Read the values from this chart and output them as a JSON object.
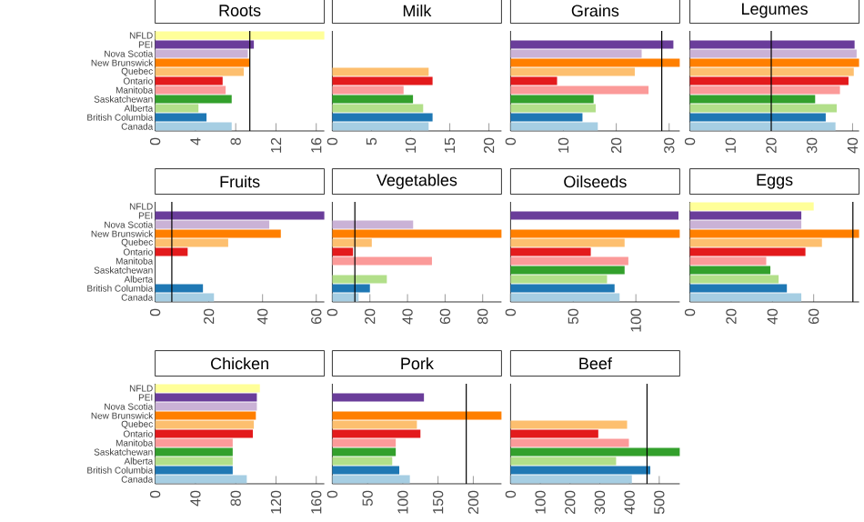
{
  "chart_data": [
    {
      "type": "bar",
      "orientation": "horizontal",
      "title": "Roots",
      "categories": [
        "NFLD",
        "PEI",
        "Nova Scotia",
        "New Brunswick",
        "Quebec",
        "Ontario",
        "Manitoba",
        "Saskatchewan",
        "Alberta",
        "British Columbia",
        "Canada"
      ],
      "values": [
        16.8,
        9.8,
        9.2,
        9.4,
        8.8,
        6.7,
        7.0,
        7.6,
        4.3,
        5.1,
        7.6
      ],
      "colors": [
        "#ffff99",
        "#6a3d9a",
        "#cab2d6",
        "#ff7f00",
        "#fdbf6f",
        "#e31a1c",
        "#fb9a99",
        "#33a02c",
        "#b2df8a",
        "#1f78b4",
        "#a6cee3"
      ],
      "xlim": [
        0,
        16.8
      ],
      "xticks": [
        0,
        4,
        8,
        12,
        16
      ],
      "ref_lines": [
        {
          "axis": "x",
          "value": 9.4
        }
      ]
    },
    {
      "type": "bar",
      "orientation": "horizontal",
      "title": "Milk",
      "categories": [
        null,
        null,
        null,
        null,
        null,
        null,
        null,
        null,
        null,
        null,
        null
      ],
      "values": [
        null,
        null,
        null,
        null,
        12.3,
        12.8,
        9.1,
        10.3,
        11.6,
        12.8,
        12.3
      ],
      "colors": [
        "#ffff99",
        "#6a3d9a",
        "#cab2d6",
        "#ff7f00",
        "#fdbf6f",
        "#e31a1c",
        "#fb9a99",
        "#33a02c",
        "#b2df8a",
        "#1f78b4",
        "#a6cee3"
      ],
      "xlim": [
        0,
        21.6
      ],
      "xticks": [
        0,
        5,
        10,
        15,
        20
      ],
      "tick_labels": "x"
    },
    {
      "type": "bar",
      "orientation": "horizontal",
      "title": "Grains",
      "categories": [
        null,
        null,
        null,
        null,
        null,
        null,
        null,
        null,
        null,
        null,
        null
      ],
      "values": [
        null,
        30.8,
        24.8,
        32,
        23.5,
        8.8,
        26.1,
        15.7,
        16.1,
        13.6,
        16.5
      ],
      "colors": [
        "#ffff99",
        "#6a3d9a",
        "#cab2d6",
        "#ff7f00",
        "#fdbf6f",
        "#e31a1c",
        "#fb9a99",
        "#33a02c",
        "#b2df8a",
        "#1f78b4",
        "#a6cee3"
      ],
      "xlim": [
        0,
        32
      ],
      "xticks": [
        0,
        10,
        20,
        30
      ],
      "ref_lines": [
        {
          "axis": "x",
          "value": 28.6
        }
      ],
      "tick_labels": "x"
    },
    {
      "type": "bar",
      "orientation": "horizontal",
      "title": "Legumes",
      "categories": [
        null,
        null,
        null,
        null,
        null,
        null,
        null,
        null,
        null,
        null,
        null
      ],
      "values": [
        null,
        40.5,
        41,
        41.6,
        40.3,
        39.0,
        36.9,
        30.8,
        36.1,
        33.4,
        35.8
      ],
      "colors": [
        "#ffff99",
        "#6a3d9a",
        "#cab2d6",
        "#ff7f00",
        "#fdbf6f",
        "#e31a1c",
        "#fb9a99",
        "#33a02c",
        "#b2df8a",
        "#1f78b4",
        "#a6cee3"
      ],
      "xlim": [
        0,
        41.6
      ],
      "xticks": [
        0,
        10,
        20,
        30,
        40
      ],
      "ref_lines": [
        {
          "axis": "x",
          "value": 20
        }
      ],
      "tick_labels": "x"
    },
    {
      "type": "bar",
      "orientation": "horizontal",
      "title": "Fruits",
      "categories": [
        "NFLD",
        "PEI",
        "Nova Scotia",
        "New Brunswick",
        "Quebec",
        "Ontario",
        "Manitoba",
        "Saskatchewan",
        "Alberta",
        "British Columbia",
        "Canada"
      ],
      "values": [
        null,
        63,
        42.5,
        46.8,
        27.2,
        12.1,
        null,
        null,
        null,
        17.8,
        21.9
      ],
      "colors": [
        "#ffff99",
        "#6a3d9a",
        "#cab2d6",
        "#ff7f00",
        "#fdbf6f",
        "#e31a1c",
        "#fb9a99",
        "#33a02c",
        "#b2df8a",
        "#1f78b4",
        "#a6cee3"
      ],
      "xlim": [
        0,
        63
      ],
      "xticks": [
        0,
        20,
        40,
        60
      ],
      "ref_lines": [
        {
          "axis": "x",
          "value": 6.2
        }
      ]
    },
    {
      "type": "bar",
      "orientation": "horizontal",
      "title": "Vegetables",
      "categories": [
        null,
        null,
        null,
        null,
        null,
        null,
        null,
        null,
        null,
        null,
        null
      ],
      "values": [
        null,
        null,
        43,
        90,
        21,
        11,
        53,
        null,
        29,
        20,
        14
      ],
      "colors": [
        "#ffff99",
        "#6a3d9a",
        "#cab2d6",
        "#ff7f00",
        "#fdbf6f",
        "#e31a1c",
        "#fb9a99",
        "#33a02c",
        "#b2df8a",
        "#1f78b4",
        "#a6cee3"
      ],
      "xlim": [
        0,
        90
      ],
      "xticks": [
        0,
        20,
        40,
        60,
        80
      ],
      "ref_lines": [
        {
          "axis": "x",
          "value": 12
        }
      ],
      "tick_labels": "x"
    },
    {
      "type": "bar",
      "orientation": "horizontal",
      "title": "Oilseeds",
      "categories": [
        null,
        null,
        null,
        null,
        null,
        null,
        null,
        null,
        null,
        null,
        null
      ],
      "values": [
        null,
        134,
        null,
        135,
        91,
        64,
        94,
        91,
        77,
        83,
        87
      ],
      "colors": [
        "#ffff99",
        "#6a3d9a",
        "#cab2d6",
        "#ff7f00",
        "#fdbf6f",
        "#e31a1c",
        "#fb9a99",
        "#33a02c",
        "#b2df8a",
        "#1f78b4",
        "#a6cee3"
      ],
      "xlim": [
        0,
        135
      ],
      "xticks": [
        0,
        50,
        100
      ],
      "tick_labels": "x"
    },
    {
      "type": "bar",
      "orientation": "horizontal",
      "title": "Eggs",
      "categories": [
        null,
        null,
        null,
        null,
        null,
        null,
        null,
        null,
        null,
        null,
        null
      ],
      "values": [
        60,
        54,
        54,
        82,
        64,
        56,
        37,
        39,
        43,
        47,
        54
      ],
      "colors": [
        "#ffff99",
        "#6a3d9a",
        "#cab2d6",
        "#ff7f00",
        "#fdbf6f",
        "#e31a1c",
        "#fb9a99",
        "#33a02c",
        "#b2df8a",
        "#1f78b4",
        "#a6cee3"
      ],
      "xlim": [
        0,
        82
      ],
      "xticks": [
        0,
        20,
        40,
        60
      ],
      "ref_lines": [
        {
          "axis": "x",
          "value": 79
        }
      ],
      "tick_labels": "x"
    },
    {
      "type": "bar",
      "orientation": "horizontal",
      "title": "Chicken",
      "categories": [
        "NFLD",
        "PEI",
        "Nova Scotia",
        "New Brunswick",
        "Quebec",
        "Ontario",
        "Manitoba",
        "Saskatchewan",
        "Alberta",
        "British Columbia",
        "Canada"
      ],
      "values": [
        104,
        101,
        101,
        100,
        98,
        97,
        77,
        77,
        77,
        77,
        91
      ],
      "colors": [
        "#ffff99",
        "#6a3d9a",
        "#cab2d6",
        "#ff7f00",
        "#fdbf6f",
        "#e31a1c",
        "#fb9a99",
        "#33a02c",
        "#b2df8a",
        "#1f78b4",
        "#a6cee3"
      ],
      "xlim": [
        0,
        168
      ],
      "xticks": [
        0,
        40,
        80,
        120,
        160
      ]
    },
    {
      "type": "bar",
      "orientation": "horizontal",
      "title": "Pork",
      "categories": [
        null,
        null,
        null,
        null,
        null,
        null,
        null,
        null,
        null,
        null,
        null
      ],
      "values": [
        null,
        130,
        null,
        240,
        120,
        125,
        90,
        90,
        85,
        95,
        110
      ],
      "colors": [
        "#ffff99",
        "#6a3d9a",
        "#cab2d6",
        "#ff7f00",
        "#fdbf6f",
        "#e31a1c",
        "#fb9a99",
        "#33a02c",
        "#b2df8a",
        "#1f78b4",
        "#a6cee3"
      ],
      "xlim": [
        0,
        240
      ],
      "xticks": [
        0,
        50,
        100,
        150,
        200
      ],
      "ref_lines": [
        {
          "axis": "x",
          "value": 190
        }
      ],
      "tick_labels": "x"
    },
    {
      "type": "bar",
      "orientation": "horizontal",
      "title": "Beef",
      "categories": [
        null,
        null,
        null,
        null,
        null,
        null,
        null,
        null,
        null,
        null,
        null
      ],
      "values": [
        null,
        null,
        null,
        null,
        392,
        295,
        398,
        569,
        355,
        470,
        408
      ],
      "colors": [
        "#ffff99",
        "#6a3d9a",
        "#cab2d6",
        "#ff7f00",
        "#fdbf6f",
        "#e31a1c",
        "#fb9a99",
        "#33a02c",
        "#b2df8a",
        "#1f78b4",
        "#a6cee3"
      ],
      "xlim": [
        0,
        569
      ],
      "xticks": [
        0,
        100,
        200,
        300,
        400,
        500
      ],
      "ref_lines": [
        {
          "axis": "x",
          "value": 459
        }
      ],
      "tick_labels": "x"
    }
  ]
}
